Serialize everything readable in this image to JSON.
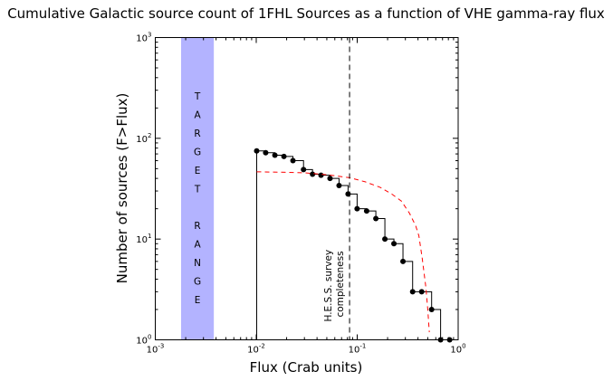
{
  "chart_data": {
    "type": "line",
    "title": "Cumulative Galactic source count of 1FHL Sources as a function of VHE gamma-ray flux",
    "xlabel": "Flux (Crab units)",
    "ylabel": "Number of sources (F>Flux)",
    "xscale": "log",
    "yscale": "log",
    "xlim": [
      0.001,
      1
    ],
    "ylim": [
      1,
      1000
    ],
    "x_ticks": [
      {
        "base": "10",
        "exp": "-3"
      },
      {
        "base": "10",
        "exp": "-2"
      },
      {
        "base": "10",
        "exp": "-1"
      },
      {
        "base": "10",
        "exp": "0"
      }
    ],
    "y_ticks": [
      {
        "base": "10",
        "exp": "0"
      },
      {
        "base": "10",
        "exp": "1"
      },
      {
        "base": "10",
        "exp": "2"
      },
      {
        "base": "10",
        "exp": "3"
      }
    ],
    "grid": false,
    "series": [
      {
        "style": "step-with-markers",
        "color": "#000000",
        "x": [
          0.0101,
          0.0124,
          0.0153,
          0.0188,
          0.0231,
          0.0294,
          0.0361,
          0.0438,
          0.0538,
          0.0661,
          0.0812,
          0.0998,
          0.124,
          0.153,
          0.188,
          0.231,
          0.284,
          0.354,
          0.435,
          0.546,
          0.67,
          0.824
        ],
        "y": [
          75,
          72,
          68,
          66,
          60,
          49,
          44,
          43,
          40,
          34,
          28,
          20,
          19,
          16,
          10,
          9,
          6,
          3,
          3,
          2,
          1,
          1
        ]
      },
      {
        "style": "dashed",
        "color": "#ff0000",
        "x": [
          0.0101,
          0.02,
          0.03,
          0.05,
          0.085,
          0.12,
          0.169,
          0.22,
          0.274,
          0.33,
          0.38,
          0.408,
          0.44,
          0.479,
          0.5,
          0.518
        ],
        "y": [
          46.5,
          46,
          45.5,
          43.5,
          40.6,
          37,
          32.6,
          28,
          23.8,
          18,
          13.5,
          10.8,
          6.5,
          3.3,
          2.0,
          1.19
        ]
      }
    ],
    "band": {
      "x": [
        0.0018,
        0.0038
      ],
      "color": "#b3b3ff",
      "label": "T A R G E T   R A N G E"
    },
    "vline": {
      "x": 0.084,
      "style": "dashed",
      "color": "#000000",
      "label_lines": [
        "H.E.S.S. survey",
        "completeness"
      ]
    }
  }
}
